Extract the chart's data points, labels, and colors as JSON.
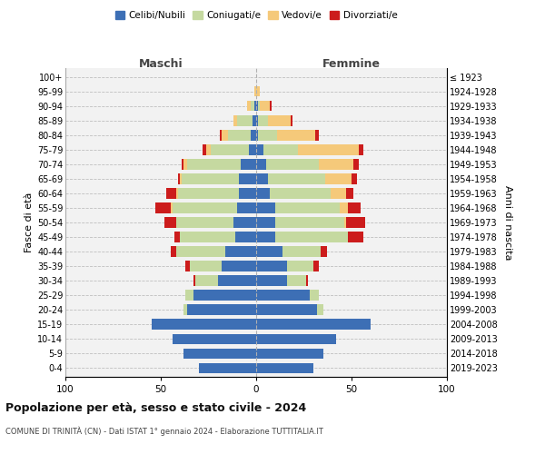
{
  "age_groups": [
    "0-4",
    "5-9",
    "10-14",
    "15-19",
    "20-24",
    "25-29",
    "30-34",
    "35-39",
    "40-44",
    "45-49",
    "50-54",
    "55-59",
    "60-64",
    "65-69",
    "70-74",
    "75-79",
    "80-84",
    "85-89",
    "90-94",
    "95-99",
    "100+"
  ],
  "birth_years": [
    "2019-2023",
    "2014-2018",
    "2009-2013",
    "2004-2008",
    "1999-2003",
    "1994-1998",
    "1989-1993",
    "1984-1988",
    "1979-1983",
    "1974-1978",
    "1969-1973",
    "1964-1968",
    "1959-1963",
    "1954-1958",
    "1949-1953",
    "1944-1948",
    "1939-1943",
    "1934-1938",
    "1929-1933",
    "1924-1928",
    "≤ 1923"
  ],
  "maschi": {
    "celibi": [
      30,
      38,
      44,
      55,
      36,
      33,
      20,
      18,
      16,
      11,
      12,
      10,
      9,
      9,
      8,
      4,
      3,
      2,
      1,
      0,
      0
    ],
    "coniugati": [
      0,
      0,
      0,
      0,
      2,
      4,
      12,
      17,
      26,
      29,
      30,
      34,
      32,
      30,
      28,
      20,
      12,
      8,
      2,
      0,
      0
    ],
    "vedovi": [
      0,
      0,
      0,
      0,
      0,
      0,
      0,
      0,
      0,
      0,
      0,
      1,
      1,
      1,
      2,
      2,
      3,
      2,
      2,
      1,
      0
    ],
    "divorziati": [
      0,
      0,
      0,
      0,
      0,
      0,
      1,
      2,
      3,
      3,
      6,
      8,
      5,
      1,
      1,
      2,
      1,
      0,
      0,
      0,
      0
    ]
  },
  "femmine": {
    "nubili": [
      30,
      35,
      42,
      60,
      32,
      28,
      16,
      16,
      14,
      10,
      10,
      10,
      7,
      6,
      5,
      4,
      1,
      1,
      1,
      0,
      0
    ],
    "coniugate": [
      0,
      0,
      0,
      0,
      3,
      5,
      10,
      14,
      20,
      38,
      36,
      34,
      32,
      30,
      28,
      18,
      10,
      5,
      1,
      0,
      0
    ],
    "vedove": [
      0,
      0,
      0,
      0,
      0,
      0,
      0,
      0,
      0,
      0,
      1,
      4,
      8,
      14,
      18,
      32,
      20,
      12,
      5,
      2,
      0
    ],
    "divorziate": [
      0,
      0,
      0,
      0,
      0,
      0,
      1,
      3,
      3,
      8,
      10,
      7,
      4,
      3,
      3,
      2,
      2,
      1,
      1,
      0,
      0
    ]
  },
  "color_celibi": "#3d6fb5",
  "color_coniugati": "#c5d9a0",
  "color_vedovi": "#f5c97a",
  "color_divorziati": "#cc1c1c",
  "title_main": "Popolazione per età, sesso e stato civile - 2024",
  "title_sub": "COMUNE DI TRINITÀ (CN) - Dati ISTAT 1° gennaio 2024 - Elaborazione TUTTITALIA.IT",
  "ylabel_left": "Fasce di età",
  "ylabel_right": "Anni di nascita",
  "xlim": 100,
  "bg_color": "#f2f2f2",
  "legend_labels": [
    "Celibi/Nubili",
    "Coniugati/e",
    "Vedovi/e",
    "Divorziati/e"
  ]
}
